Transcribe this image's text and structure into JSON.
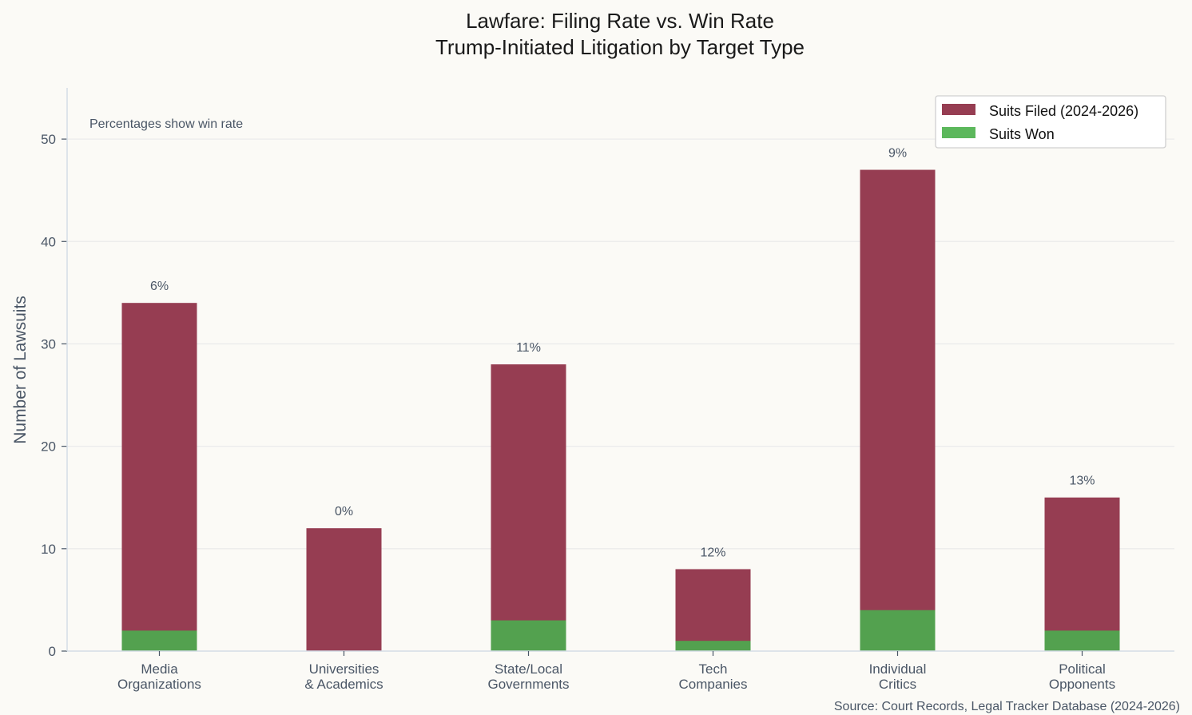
{
  "chart_data": {
    "type": "bar",
    "stacked_overlay": true,
    "title": "Lawfare: Filing Rate vs. Win Rate",
    "subtitle": "Trump-Initiated Litigation by Target Type",
    "xlabel": "",
    "ylabel": "Number of Lawsuits",
    "ylim": [
      0,
      55
    ],
    "yticks": [
      0,
      10,
      20,
      30,
      40,
      50
    ],
    "grid": true,
    "legend_position": "top-right",
    "categories": [
      [
        "Media",
        "Organizations"
      ],
      [
        "Universities",
        "& Academics"
      ],
      [
        "State/Local",
        "Governments"
      ],
      [
        "Tech",
        "Companies"
      ],
      [
        "Individual",
        "Critics"
      ],
      [
        "Political",
        "Opponents"
      ]
    ],
    "series": [
      {
        "name": "Suits Filed (2024-2026)",
        "values": [
          34,
          12,
          28,
          8,
          47,
          15
        ],
        "color": "#963d52"
      },
      {
        "name": "Suits Won",
        "values": [
          2,
          0,
          3,
          1,
          4,
          2
        ],
        "color": "#53a14f",
        "legend_color": "#5cb85c"
      }
    ],
    "data_labels": [
      "6%",
      "0%",
      "11%",
      "12%",
      "9%",
      "13%"
    ],
    "annotation": "Percentages show win rate",
    "source": "Source: Court Records, Legal Tracker Database (2024-2026)"
  }
}
